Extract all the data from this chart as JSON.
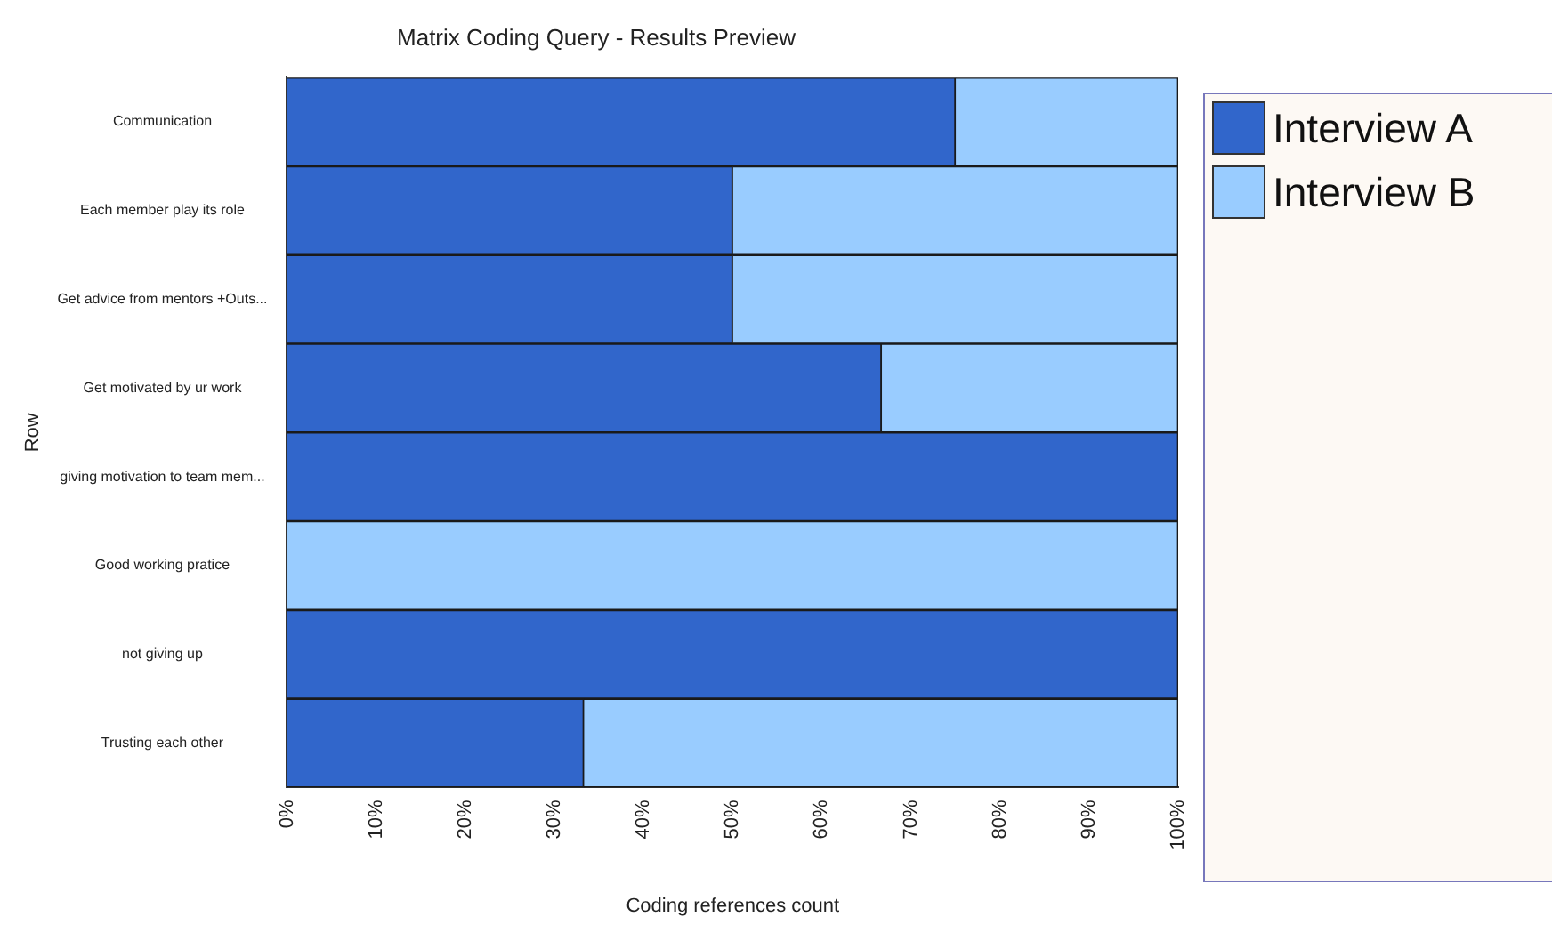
{
  "chart_data": {
    "type": "bar",
    "orientation": "horizontal",
    "stacked": true,
    "title": "Matrix Coding Query - Results Preview",
    "xlabel": "Coding references count",
    "ylabel": "Row",
    "categories": [
      "Communication",
      "Each member play its role",
      "Get advice from mentors +Outs...",
      "Get motivated by ur work",
      "giving motivation to team mem...",
      "Good working pratice",
      "not giving up",
      "Trusting each other"
    ],
    "series": [
      {
        "name": "Interview A",
        "color": "#3166cb",
        "values": [
          75,
          50,
          50,
          66.7,
          100,
          0,
          100,
          33.3
        ]
      },
      {
        "name": "Interview B",
        "color": "#99ccff",
        "values": [
          25,
          50,
          50,
          33.3,
          0,
          100,
          0,
          66.7
        ]
      }
    ],
    "xlim": [
      0,
      100
    ],
    "xticks": [
      {
        "value": 0,
        "label": "0%"
      },
      {
        "value": 10,
        "label": "10%"
      },
      {
        "value": 20,
        "label": "20%"
      },
      {
        "value": 30,
        "label": "30%"
      },
      {
        "value": 40,
        "label": "40%"
      },
      {
        "value": 50,
        "label": "50%"
      },
      {
        "value": 60,
        "label": "60%"
      },
      {
        "value": 70,
        "label": "70%"
      },
      {
        "value": 80,
        "label": "80%"
      },
      {
        "value": 90,
        "label": "90%"
      },
      {
        "value": 100,
        "label": "100%"
      }
    ],
    "grid": false,
    "legend": "right"
  }
}
